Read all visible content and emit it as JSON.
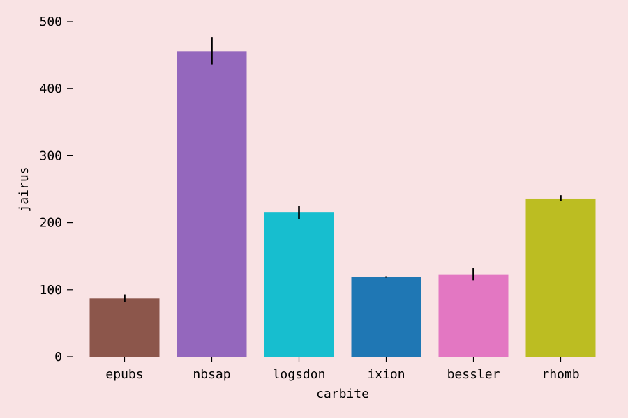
{
  "chart_data": {
    "type": "bar",
    "title": "",
    "xlabel": "carbite",
    "ylabel": "jairus",
    "categories": [
      "epubs",
      "nbsap",
      "logsdon",
      "ixion",
      "bessler",
      "rhomb"
    ],
    "values": [
      87,
      456,
      215,
      119,
      122,
      236
    ],
    "error_low": [
      82,
      436,
      205,
      118,
      114,
      232
    ],
    "error_high": [
      93,
      477,
      225,
      120,
      132,
      241
    ],
    "colors": [
      "#8c564b",
      "#9467bd",
      "#17becf",
      "#1f77b4",
      "#e377c2",
      "#bcbd22"
    ],
    "ylim": [
      0,
      500
    ],
    "yticks": [
      0,
      100,
      200,
      300,
      400,
      500
    ],
    "grid": false,
    "legend": "none",
    "background": "#f9e3e4"
  }
}
